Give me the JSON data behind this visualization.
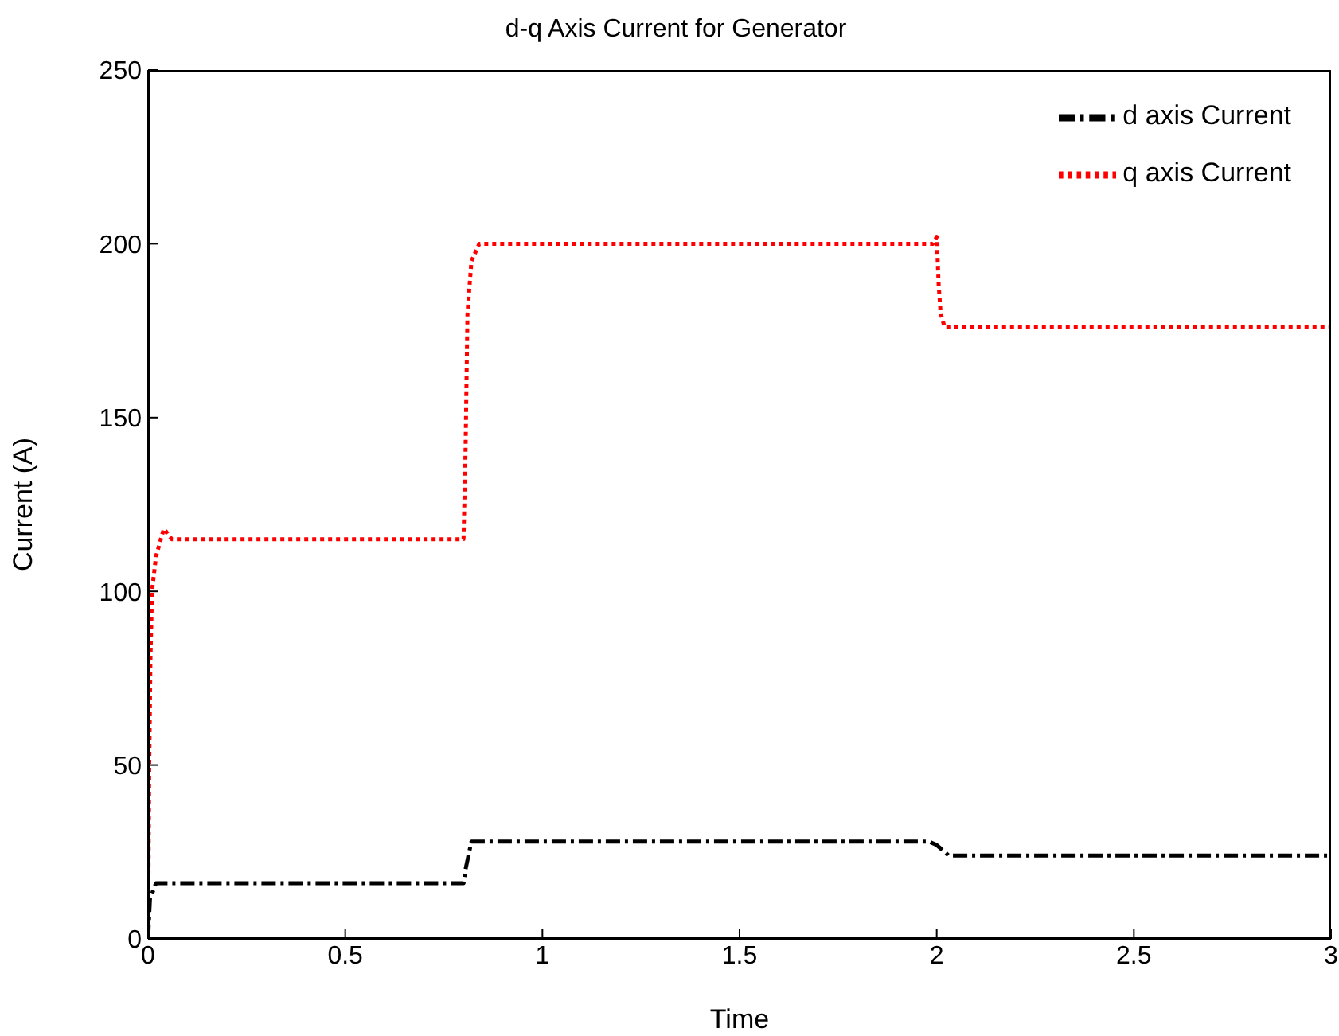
{
  "chart_data": {
    "type": "line",
    "title": "d-q Axis Current for Generator",
    "xlabel": "Time",
    "ylabel": "Current (A)",
    "xlim": [
      0,
      3
    ],
    "xticks": [
      0,
      0.5,
      1,
      1.5,
      2,
      2.5,
      3
    ],
    "ylim": [
      0,
      250
    ],
    "yticks": [
      0,
      50,
      100,
      150,
      200,
      250
    ],
    "grid": false,
    "legend": "top right",
    "marker": "none",
    "series": [
      {
        "name": "d axis Current",
        "color": "#000000",
        "line_style": "dashed",
        "x": [
          0,
          0.005,
          0.01,
          0.02,
          0.8,
          0.805,
          0.82,
          1.98,
          2,
          2.03,
          3
        ],
        "values": [
          0,
          12,
          13,
          16,
          16,
          20,
          28,
          28,
          27,
          24,
          24
        ]
      },
      {
        "name": "q axis Current",
        "color": "#ff0000",
        "line_style": "dotted",
        "x": [
          0,
          0.003,
          0.006,
          0.01,
          0.02,
          0.04,
          0.06,
          0.1,
          0.8,
          0.805,
          0.81,
          0.82,
          0.84,
          0.86,
          1.99,
          2,
          2.005,
          2.01,
          2.02,
          2.03,
          3
        ],
        "values": [
          0,
          50,
          80,
          100,
          110,
          118,
          115,
          115,
          115,
          140,
          180,
          195,
          200,
          200,
          200,
          202,
          188,
          180,
          176,
          176,
          176
        ]
      }
    ]
  }
}
